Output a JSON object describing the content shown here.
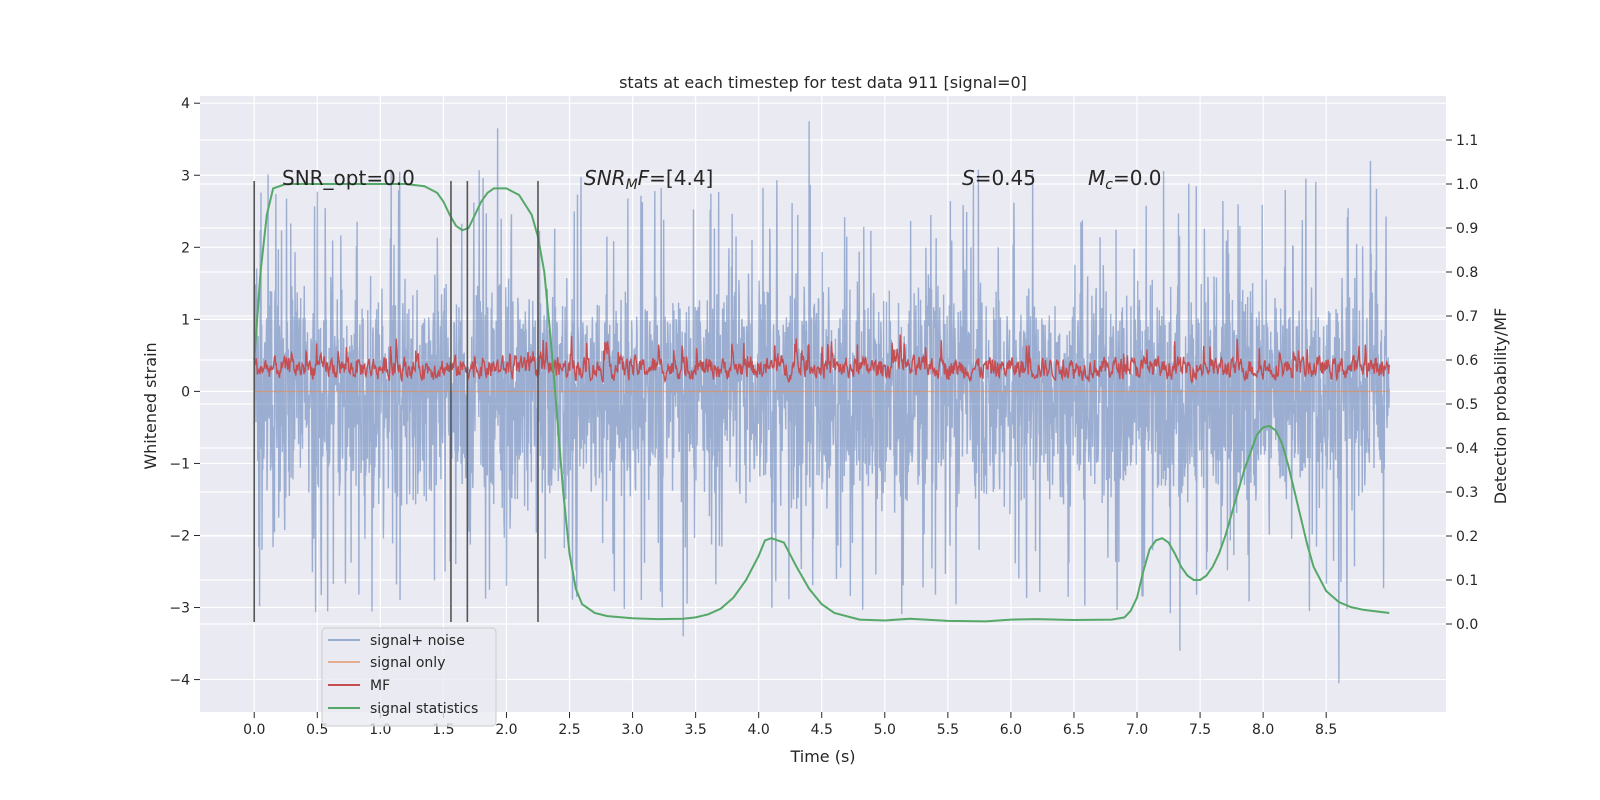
{
  "chart_data": {
    "type": "line",
    "title": "stats at each timestep for test data 911 [signal=0]",
    "xlabel": "Time (s)",
    "ylabel": "Whitened strain",
    "ylabel_right": "Detection probability/MF",
    "xlim": [
      -0.43,
      9.45
    ],
    "ylim": [
      -4.45,
      4.1
    ],
    "ylim_right": [
      -0.2,
      1.2
    ],
    "xticks": [
      "0.0",
      "0.5",
      "1.0",
      "1.5",
      "2.0",
      "2.5",
      "3.0",
      "3.5",
      "4.0",
      "4.5",
      "5.0",
      "5.5",
      "6.0",
      "6.5",
      "7.0",
      "7.5",
      "8.0",
      "8.5"
    ],
    "yticks": [
      "4",
      "3",
      "2",
      "1",
      "0",
      "−1",
      "−2",
      "−3",
      "−4"
    ],
    "yticks_right": [
      "1.1",
      "1.0",
      "0.9",
      "0.8",
      "0.7",
      "0.6",
      "0.5",
      "0.4",
      "0.3",
      "0.2",
      "0.1",
      "0.0"
    ],
    "grid": true,
    "legend_position": "lower-left",
    "annotations": [
      {
        "text": "SNR_opt=0.0",
        "x": 0.2,
        "y": 3.0
      },
      {
        "text_main": "SNR",
        "text_sub": "M",
        "text_tail": "F=[4.4]",
        "x": 2.6,
        "y": 3.0
      },
      {
        "text_main": "S",
        "text_tail": "=0.45",
        "x": 5.6,
        "y": 3.0
      },
      {
        "text_main": "M",
        "text_sub": "c",
        "text_tail": "=0.0",
        "x": 6.6,
        "y": 3.0
      }
    ],
    "vlines": [
      0.0,
      1.56,
      1.69,
      2.25
    ],
    "vline_range": [
      -3.2,
      2.92
    ],
    "series": [
      {
        "name": "signal+ noise",
        "color": "#4c72b0",
        "alpha": 0.5,
        "style": "noise",
        "x_range": [
          0.0,
          9.0
        ],
        "samples": 3200,
        "band": [
          -1.55,
          1.55
        ],
        "spike_range": [
          -3.8,
          3.7
        ],
        "notable_peaks": [
          {
            "x": 1.93,
            "y": 3.65
          },
          {
            "x": 4.4,
            "y": 3.75
          },
          {
            "x": 3.4,
            "y": -3.4
          },
          {
            "x": 7.34,
            "y": -3.6
          },
          {
            "x": 8.6,
            "y": -4.05
          },
          {
            "x": 8.85,
            "y": 3.2
          }
        ]
      },
      {
        "name": "signal only",
        "color": "#dd8452",
        "alpha": 0.6,
        "style": "flat",
        "x": [
          0.0,
          9.0
        ],
        "y": [
          0.0,
          0.0
        ]
      },
      {
        "name": "MF",
        "color": "#c44e52",
        "style": "noise",
        "x_range": [
          0.0,
          9.0
        ],
        "samples": 1800,
        "band": [
          0.1,
          0.55
        ],
        "spike_range": [
          0.0,
          1.02
        ]
      },
      {
        "name": "signal statistics",
        "color": "#55a868",
        "axis": "right",
        "x": [
          0.0,
          0.05,
          0.1,
          0.15,
          0.25,
          0.4,
          0.6,
          0.8,
          1.0,
          1.2,
          1.35,
          1.45,
          1.5,
          1.55,
          1.6,
          1.65,
          1.7,
          1.75,
          1.8,
          1.85,
          1.9,
          2.0,
          2.1,
          2.2,
          2.25,
          2.3,
          2.35,
          2.4,
          2.45,
          2.5,
          2.55,
          2.6,
          2.7,
          2.8,
          3.0,
          3.2,
          3.4,
          3.5,
          3.6,
          3.7,
          3.8,
          3.9,
          4.0,
          4.05,
          4.1,
          4.2,
          4.3,
          4.4,
          4.5,
          4.6,
          4.8,
          5.0,
          5.2,
          5.5,
          5.8,
          6.0,
          6.2,
          6.5,
          6.8,
          6.9,
          6.95,
          7.0,
          7.05,
          7.1,
          7.15,
          7.2,
          7.25,
          7.3,
          7.35,
          7.4,
          7.45,
          7.5,
          7.55,
          7.6,
          7.65,
          7.7,
          7.75,
          7.8,
          7.85,
          7.9,
          7.95,
          8.0,
          8.05,
          8.1,
          8.15,
          8.2,
          8.25,
          8.3,
          8.35,
          8.4,
          8.5,
          8.6,
          8.7,
          8.8,
          9.0
        ],
        "y": [
          0.6,
          0.8,
          0.93,
          0.99,
          1.0,
          1.0,
          1.0,
          1.0,
          1.0,
          1.0,
          0.995,
          0.98,
          0.96,
          0.93,
          0.905,
          0.895,
          0.9,
          0.93,
          0.96,
          0.98,
          0.99,
          0.99,
          0.975,
          0.93,
          0.88,
          0.8,
          0.65,
          0.48,
          0.3,
          0.16,
          0.08,
          0.045,
          0.025,
          0.018,
          0.013,
          0.011,
          0.012,
          0.015,
          0.022,
          0.035,
          0.06,
          0.1,
          0.155,
          0.19,
          0.195,
          0.185,
          0.13,
          0.08,
          0.045,
          0.025,
          0.01,
          0.008,
          0.012,
          0.007,
          0.006,
          0.01,
          0.011,
          0.009,
          0.01,
          0.015,
          0.03,
          0.06,
          0.12,
          0.17,
          0.19,
          0.195,
          0.185,
          0.16,
          0.13,
          0.11,
          0.1,
          0.1,
          0.11,
          0.13,
          0.16,
          0.2,
          0.25,
          0.3,
          0.35,
          0.39,
          0.43,
          0.447,
          0.45,
          0.44,
          0.41,
          0.36,
          0.3,
          0.24,
          0.18,
          0.13,
          0.075,
          0.05,
          0.038,
          0.032,
          0.025
        ]
      }
    ]
  }
}
